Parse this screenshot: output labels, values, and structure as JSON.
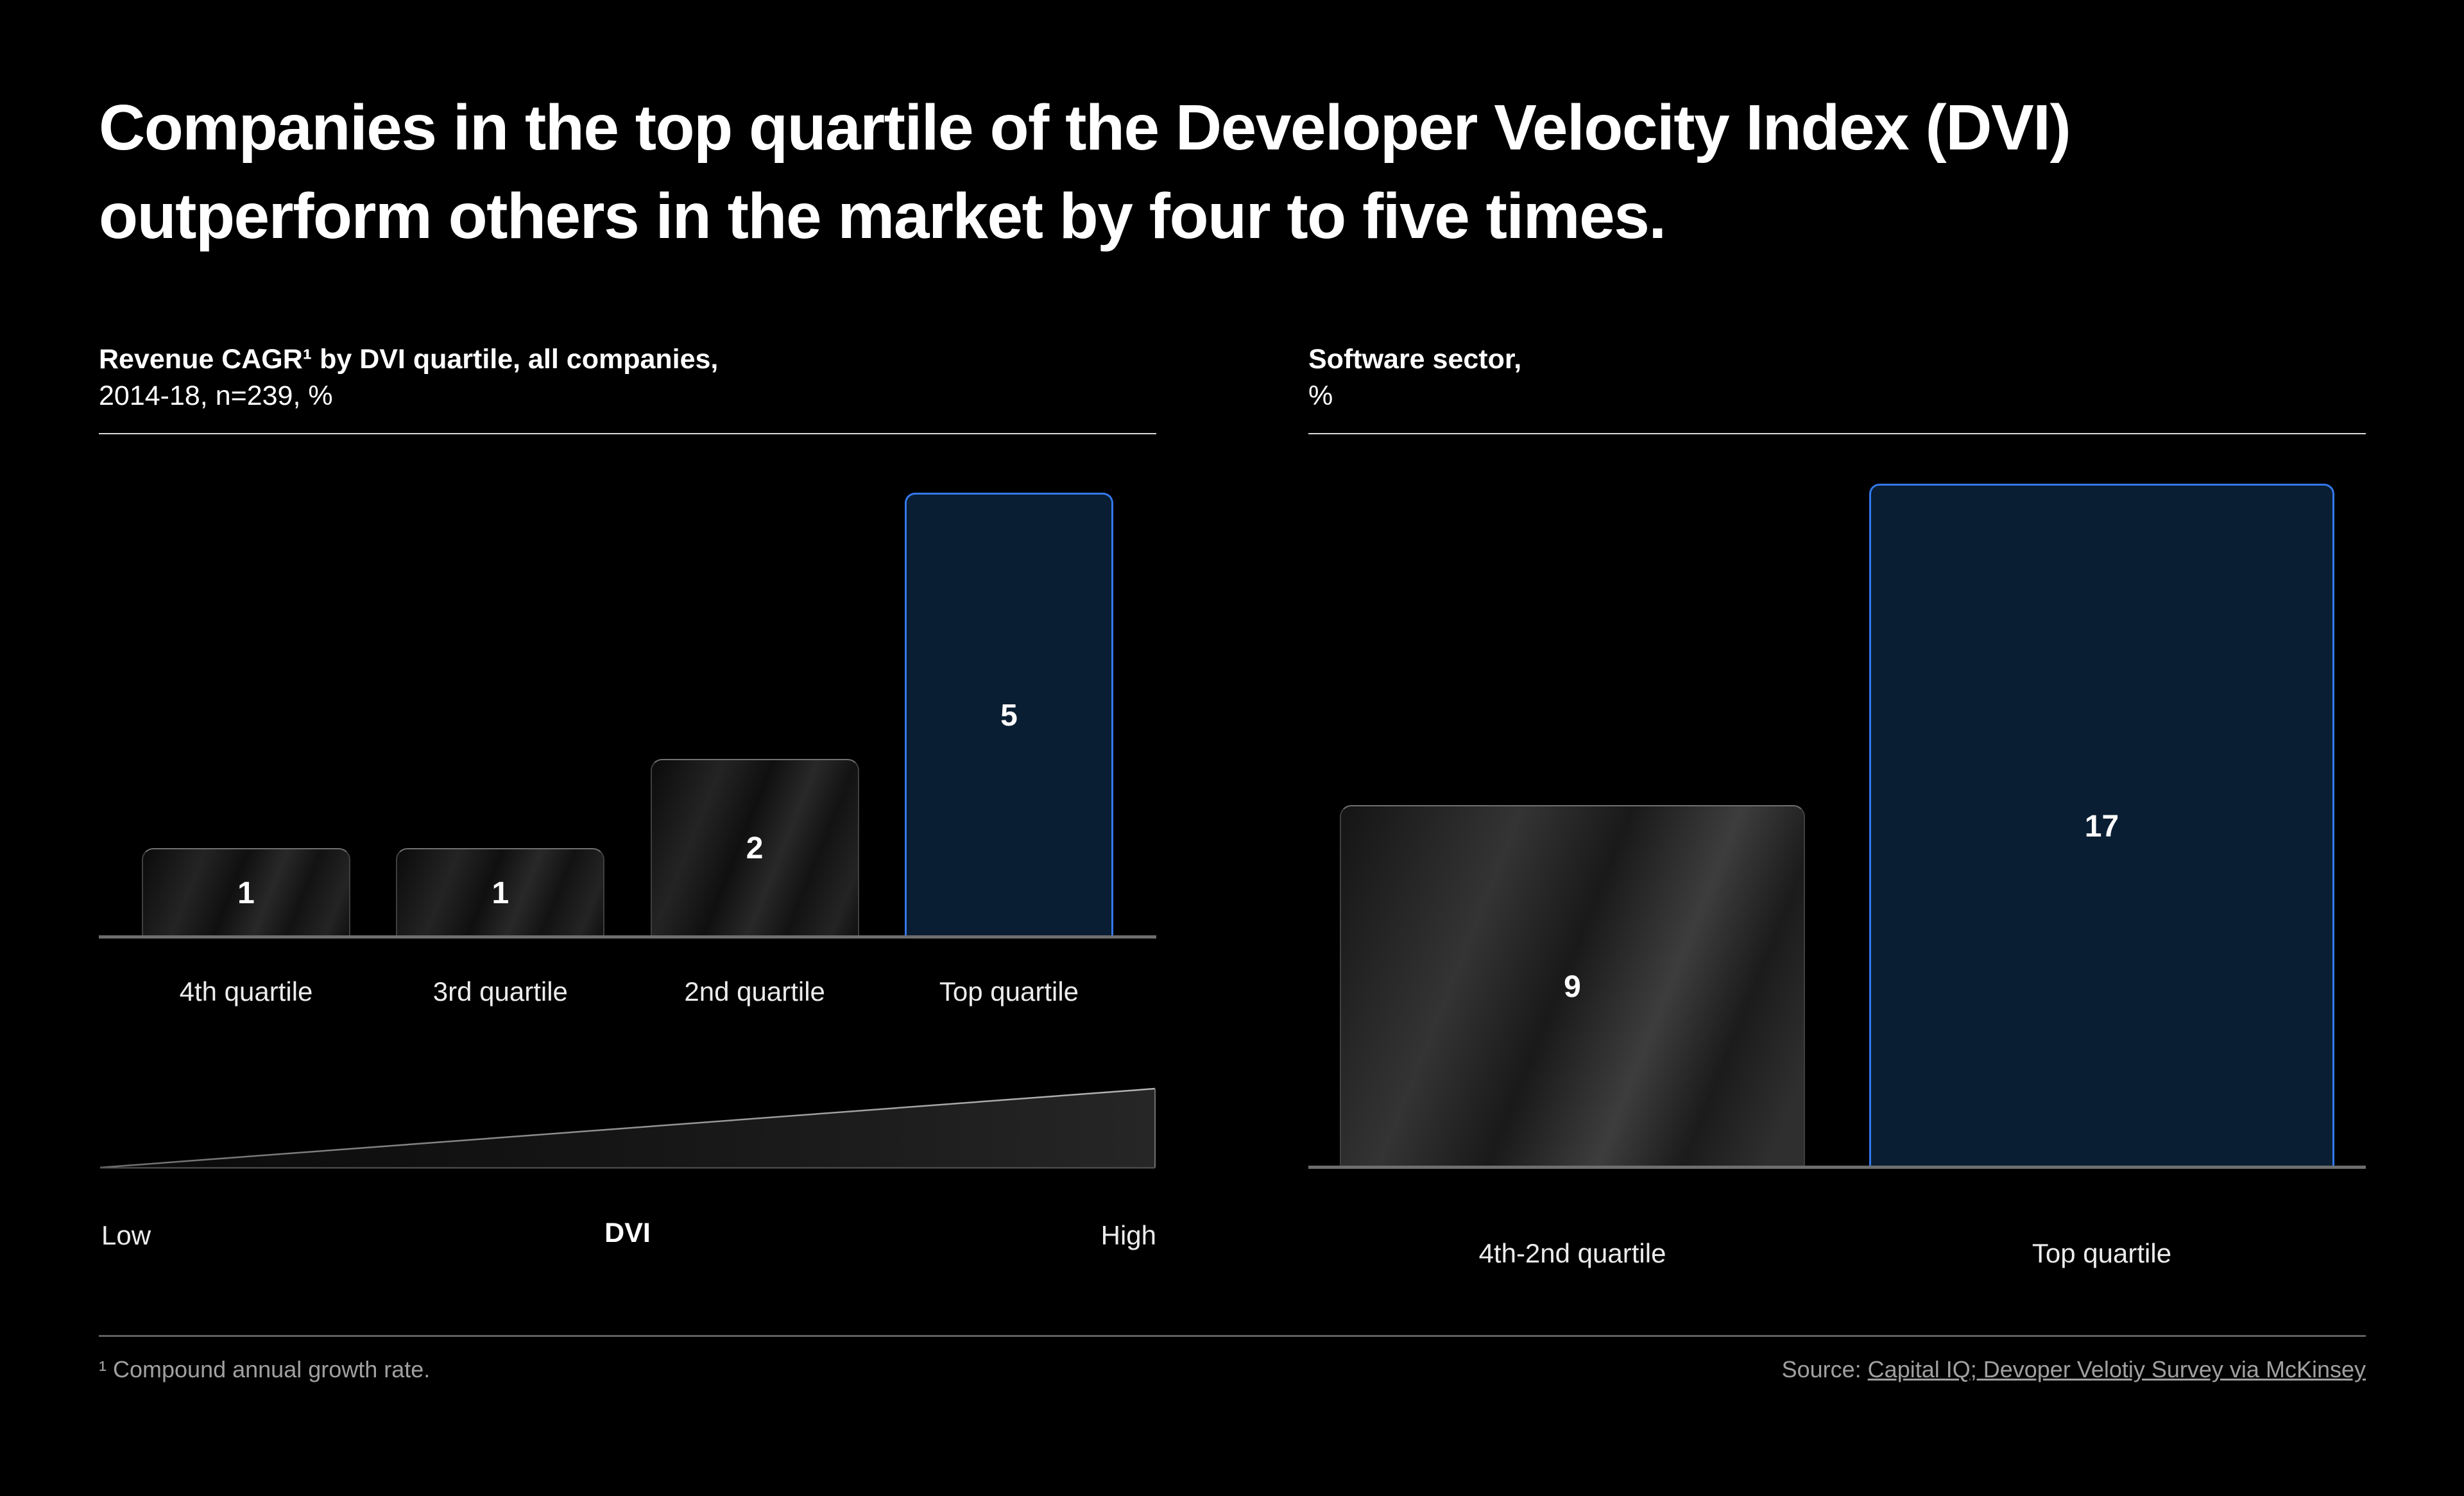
{
  "title_lines": [
    "Companies in the top quartile of the Developer Velocity Index (DVI)",
    "outperform others in the market by four to five times."
  ],
  "chart_data": [
    {
      "type": "bar",
      "title": "Revenue CAGR¹ by DVI quartile, all companies,",
      "subtitle": "2014-18, n=239, %",
      "categories": [
        "4th quartile",
        "3rd quartile",
        "2nd quartile",
        "Top quartile"
      ],
      "values": [
        1,
        1,
        2,
        5
      ],
      "ylim": [
        0,
        5
      ],
      "grid": false,
      "legend": "none",
      "highlight_category": "Top quartile",
      "x_axis_annotation": {
        "left": "Low",
        "center": "DVI",
        "right": "High"
      }
    },
    {
      "type": "bar",
      "title": "Software sector,",
      "subtitle": "%",
      "categories": [
        "4th-2nd quartile",
        "Top quartile"
      ],
      "values": [
        9,
        17
      ],
      "ylim": [
        0,
        17
      ],
      "grid": false,
      "legend": "none",
      "highlight_category": "Top quartile"
    }
  ],
  "footnote": "¹ Compound annual growth rate.",
  "source": {
    "prefix": "Source: ",
    "link_text": "Capital IQ; Devoper Velotiy Survey via McKinsey"
  },
  "colors": {
    "background": "#000000",
    "text_primary": "#ffffff",
    "text_secondary": "#ececec",
    "text_muted": "#a0a0a0",
    "accent_blue_border": "#3478ec",
    "accent_navy_fill": "#0a1e33",
    "axis_line": "#6e6e6e",
    "header_rule": "#d9d9d9",
    "footer_rule": "#5f5f5f"
  }
}
